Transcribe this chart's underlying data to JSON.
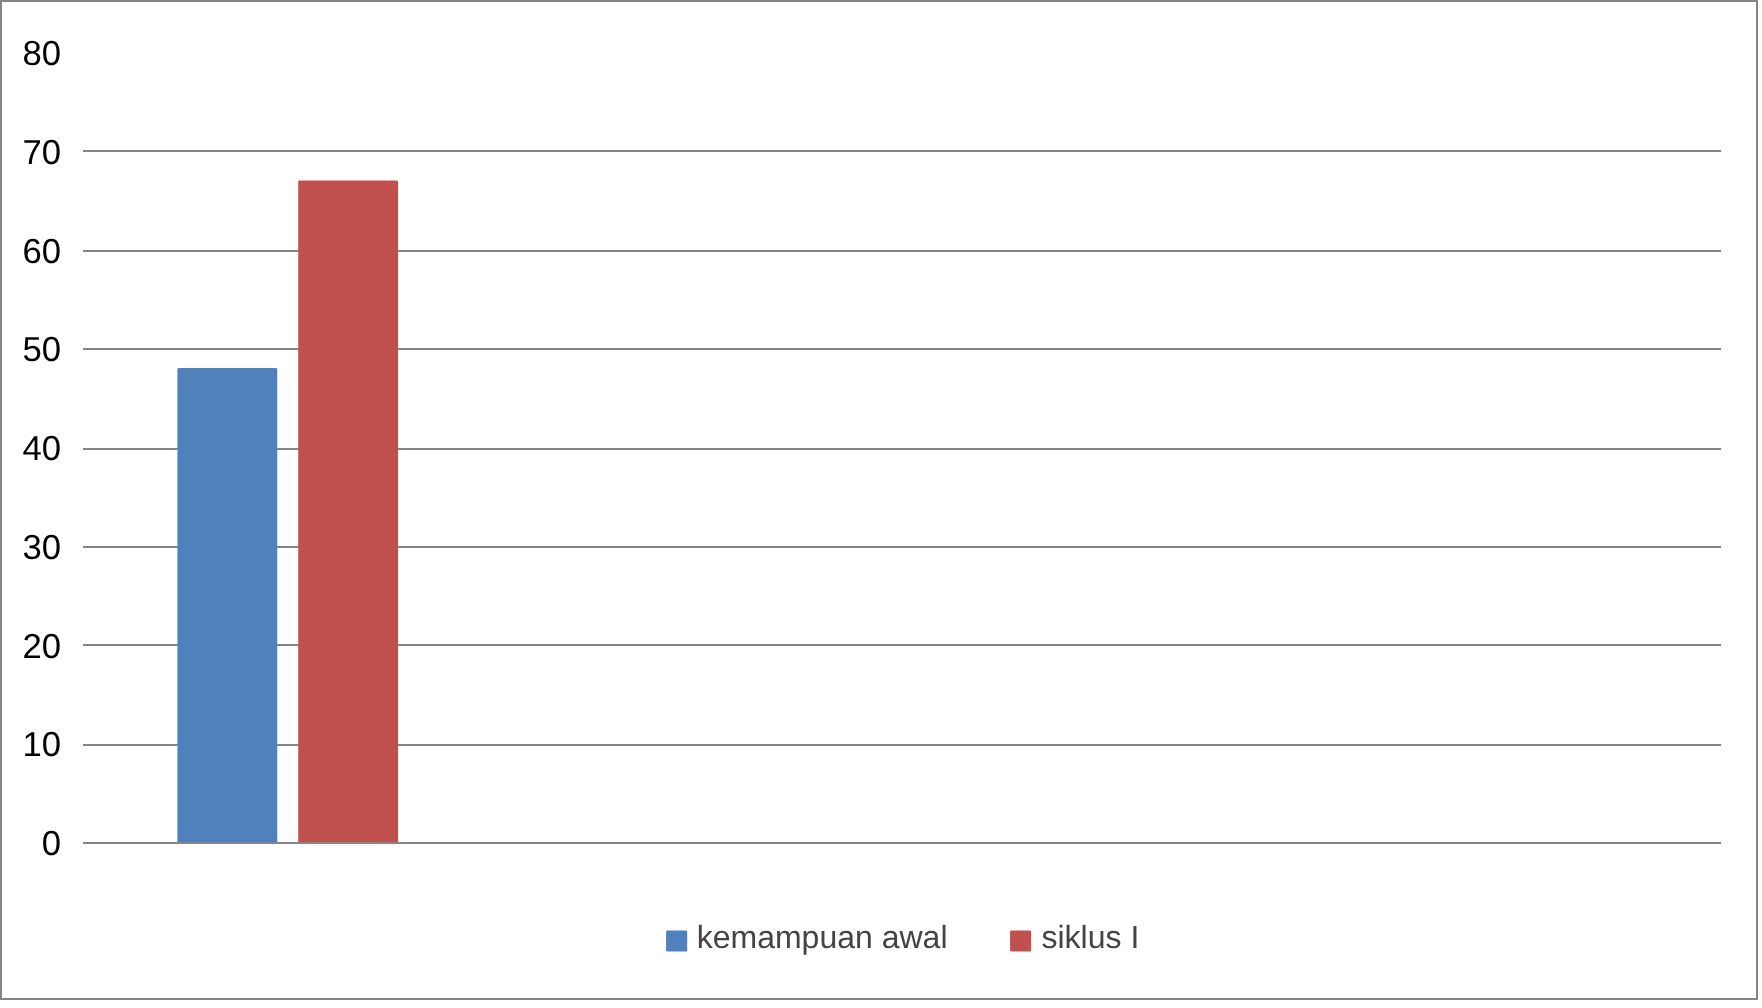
{
  "chart_data": {
    "type": "bar",
    "categories": [
      null,
      null,
      null,
      null
    ],
    "series": [
      {
        "name": "kemampuan awal",
        "color": "#4f81bd",
        "values": [
          48,
          null,
          null,
          null
        ]
      },
      {
        "name": "siklus I",
        "color": "#c0504d",
        "values": [
          67,
          null,
          null,
          null
        ]
      }
    ],
    "ylim": [
      0,
      80
    ],
    "yticks": [
      0,
      10,
      20,
      30,
      40,
      50,
      60,
      70,
      80
    ],
    "grid": "y",
    "legend": "bottom",
    "tick_labels": "y"
  }
}
